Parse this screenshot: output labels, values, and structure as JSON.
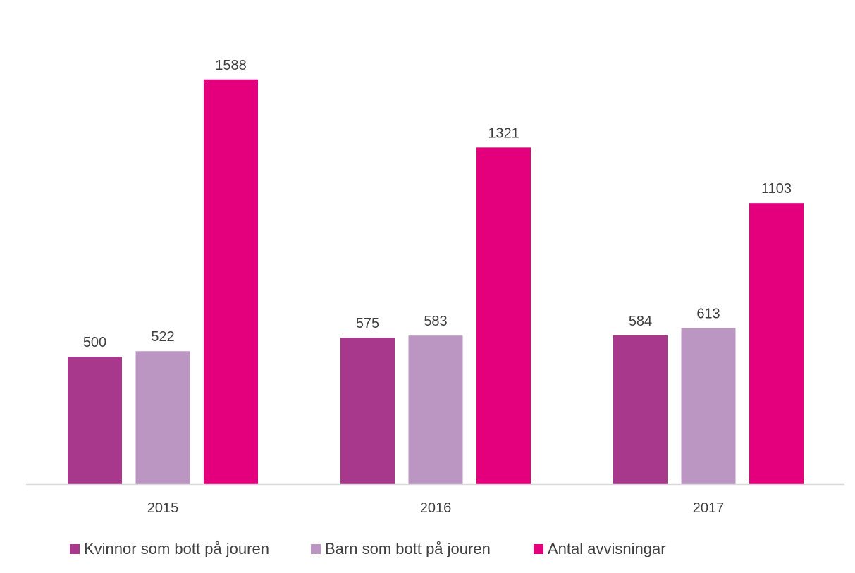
{
  "chart_data": {
    "type": "bar",
    "title": "",
    "xlabel": "",
    "ylabel": "",
    "categories": [
      "2015",
      "2016",
      "2017"
    ],
    "series": [
      {
        "name": "Kvinnor som bott på jouren",
        "values": [
          500,
          575,
          584
        ],
        "color": "#A8388C"
      },
      {
        "name": "Barn som bott på jouren",
        "values": [
          522,
          583,
          613
        ],
        "color": "#BB96C2"
      },
      {
        "name": "Antal avvisningar",
        "values": [
          1588,
          1321,
          1103
        ],
        "color": "#E4007C"
      }
    ],
    "ylim": [
      0,
      1700
    ],
    "grid": false,
    "legend_position": "bottom-left",
    "show_data_labels": true
  }
}
